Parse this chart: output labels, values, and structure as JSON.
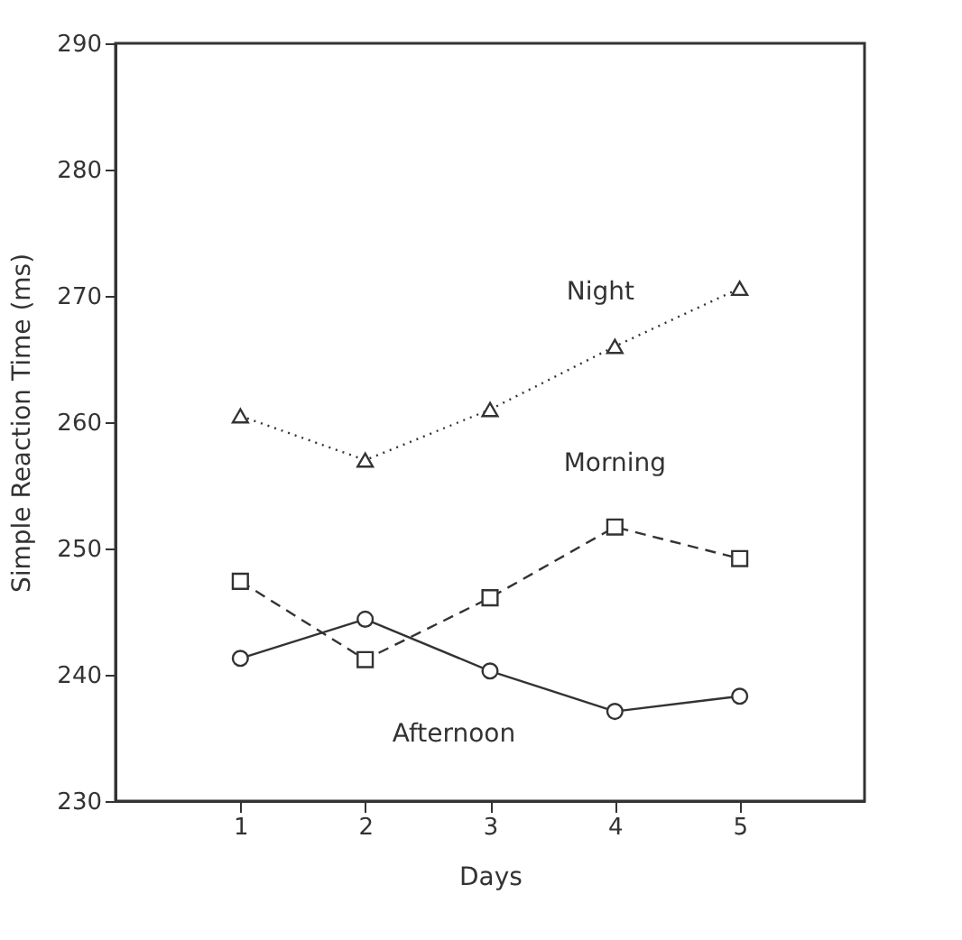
{
  "chart_data": {
    "type": "line",
    "xlabel": "Days",
    "ylabel": "Simple Reaction Time (ms)",
    "x": [
      1,
      2,
      3,
      4,
      5
    ],
    "xlim": [
      0,
      6
    ],
    "xticks": [
      1,
      2,
      3,
      4,
      5
    ],
    "ylim": [
      230,
      290
    ],
    "yticks": [
      230,
      240,
      250,
      260,
      270,
      280,
      290
    ],
    "grid": false,
    "series": [
      {
        "name": "Night",
        "color": "#333333",
        "marker": "triangle",
        "line_style": "dotted",
        "values": [
          260.5,
          257,
          261,
          266,
          270.6
        ]
      },
      {
        "name": "Morning",
        "color": "#333333",
        "marker": "square",
        "line_style": "dashed",
        "values": [
          247.4,
          241.2,
          246.1,
          251.7,
          249.2
        ]
      },
      {
        "name": "Afternoon",
        "color": "#333333",
        "marker": "circle",
        "line_style": "solid",
        "values": [
          241.3,
          244.4,
          240.3,
          237.1,
          238.3
        ]
      }
    ]
  }
}
